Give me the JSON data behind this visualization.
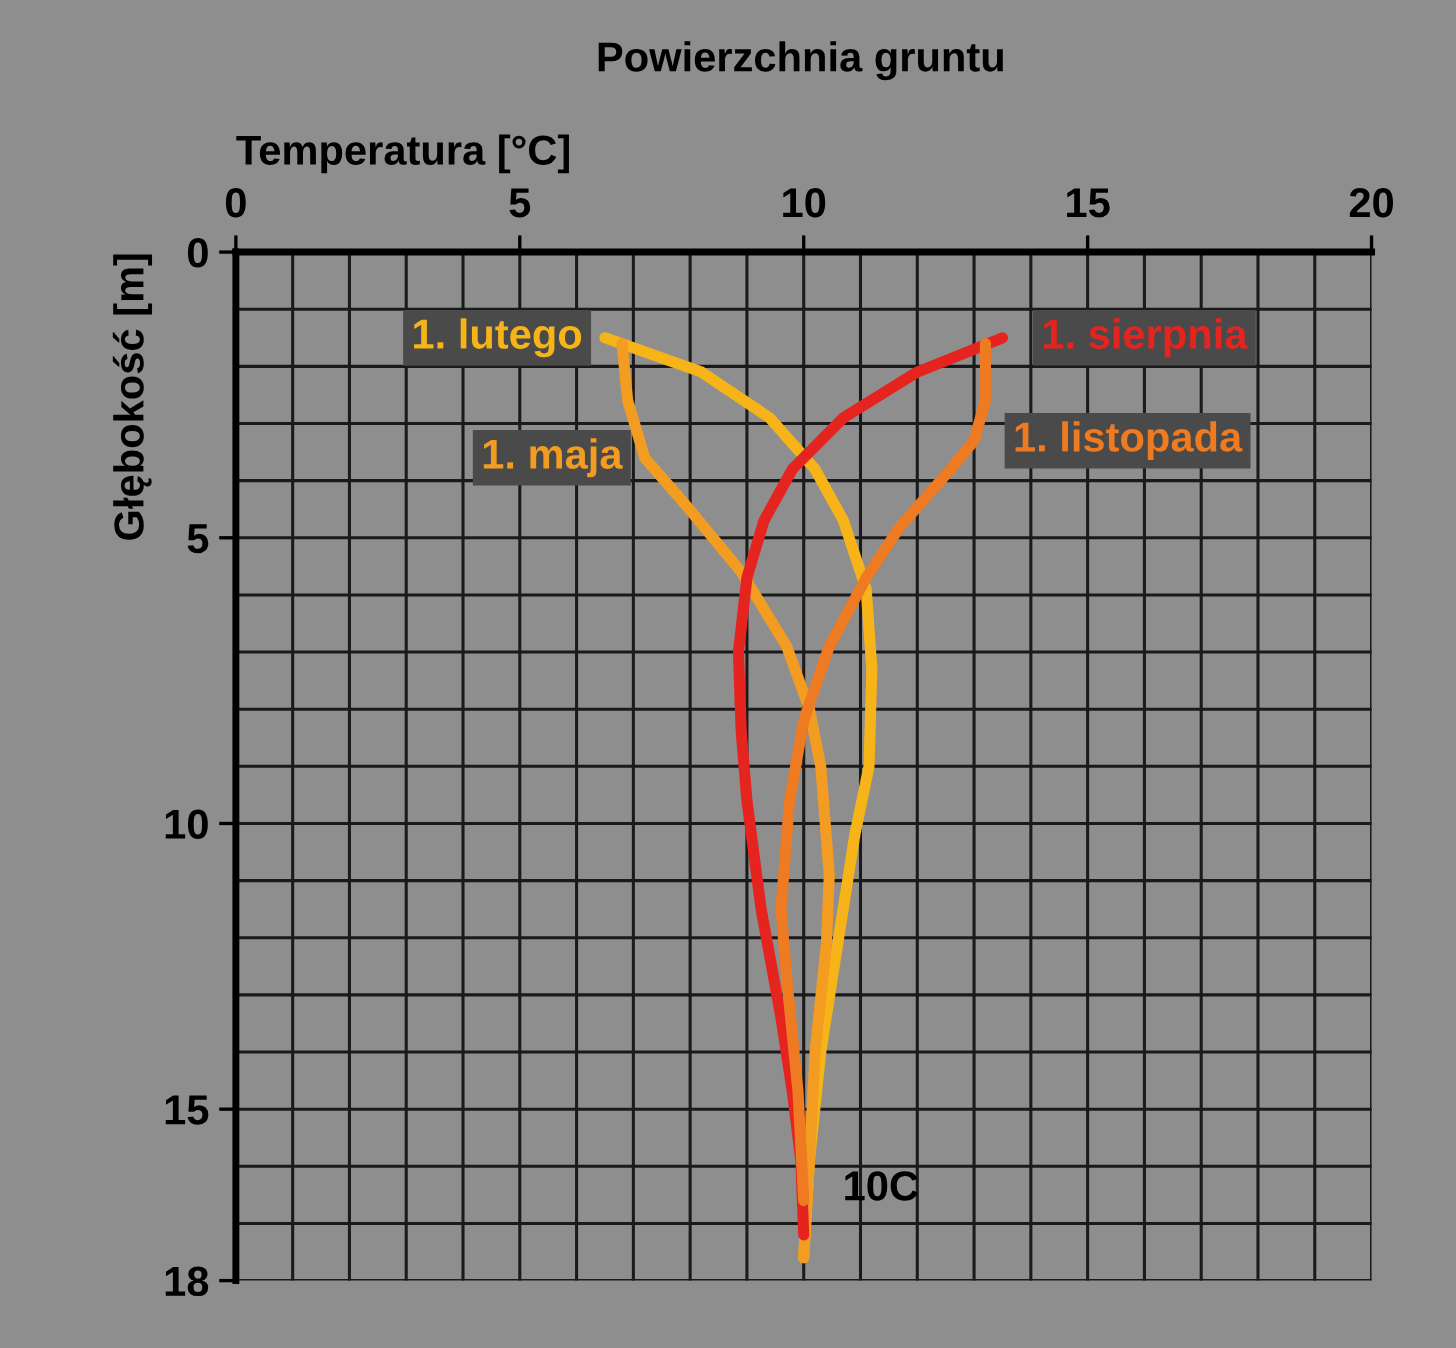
{
  "chart_data": {
    "type": "line",
    "title": "Powierzchnia gruntu",
    "xlabel": "Temperatura [°C]",
    "ylabel": "Głębokość [m]",
    "xlim": [
      0,
      20
    ],
    "ylim": [
      18,
      0
    ],
    "xticks": [
      0,
      {
        "value": 1,
        "label": null
      },
      {
        "value": 2,
        "label": null
      },
      {
        "value": 3,
        "label": null
      },
      {
        "value": 4,
        "label": null
      },
      5,
      {
        "value": 6,
        "label": null
      },
      {
        "value": 7,
        "label": null
      },
      {
        "value": 8,
        "label": null
      },
      {
        "value": 9,
        "label": null
      },
      10,
      {
        "value": 11,
        "label": null
      },
      {
        "value": 12,
        "label": null
      },
      {
        "value": 13,
        "label": null
      },
      {
        "value": 14,
        "label": null
      },
      15,
      {
        "value": 16,
        "label": null
      },
      {
        "value": 17,
        "label": null
      },
      {
        "value": 18,
        "label": null
      },
      {
        "value": 19,
        "label": null
      },
      20
    ],
    "yticks": [
      0,
      {
        "value": 1,
        "label": null
      },
      {
        "value": 2,
        "label": null
      },
      {
        "value": 3,
        "label": null
      },
      {
        "value": 4,
        "label": null
      },
      5,
      {
        "value": 6,
        "label": null
      },
      {
        "value": 7,
        "label": null
      },
      {
        "value": 8,
        "label": null
      },
      {
        "value": 9,
        "label": null
      },
      10,
      {
        "value": 11,
        "label": null
      },
      {
        "value": 12,
        "label": null
      },
      {
        "value": 13,
        "label": null
      },
      {
        "value": 14,
        "label": null
      },
      15,
      {
        "value": 16,
        "label": null
      },
      {
        "value": 17,
        "label": null
      },
      18
    ],
    "grid": true,
    "legend": false,
    "marker": "none",
    "line_style": "solid",
    "series": [
      {
        "name": "1. lutego",
        "color": "#f7b418",
        "x": [
          6.5,
          8.2,
          9.4,
          10.2,
          10.7,
          11.1,
          11.2,
          11.15,
          10.9,
          10.6,
          10.3,
          10.1,
          10.0
        ],
        "values": [
          1.5,
          2.1,
          2.9,
          3.8,
          4.7,
          5.9,
          7.3,
          9.0,
          10.2,
          12.1,
          14.0,
          15.9,
          17.6
        ]
      },
      {
        "name": "1. maja",
        "color": "#f39c22",
        "x": [
          6.8,
          6.9,
          7.2,
          7.9,
          8.9,
          9.7,
          10.1,
          10.3,
          10.45,
          10.4,
          10.2,
          10.1,
          10.0
        ],
        "values": [
          1.6,
          2.6,
          3.6,
          4.4,
          5.6,
          6.9,
          8.0,
          9.0,
          10.9,
          12.1,
          14.0,
          15.9,
          17.6
        ]
      },
      {
        "name": "1. sierpnia",
        "color": "#e52420",
        "x": [
          13.5,
          12.0,
          10.7,
          9.8,
          9.3,
          9.0,
          8.85,
          8.9,
          9.0,
          9.25,
          9.6,
          9.8,
          9.95,
          10.0
        ],
        "values": [
          1.5,
          2.1,
          2.9,
          3.8,
          4.7,
          5.7,
          7.0,
          8.4,
          9.6,
          11.5,
          13.4,
          14.7,
          15.9,
          17.2
        ]
      },
      {
        "name": "1. listopada",
        "color": "#ee7a22",
        "x": [
          13.2,
          13.2,
          13.0,
          12.5,
          11.7,
          11.1,
          10.45,
          10.0,
          9.75,
          9.6,
          9.7,
          9.9,
          10.0
        ],
        "values": [
          1.6,
          2.6,
          3.3,
          3.9,
          4.8,
          5.7,
          6.9,
          8.2,
          9.6,
          11.5,
          12.7,
          14.7,
          16.6
        ]
      }
    ],
    "annotations": [
      {
        "text": "10C",
        "x": 10,
        "y": 16.6
      }
    ]
  }
}
